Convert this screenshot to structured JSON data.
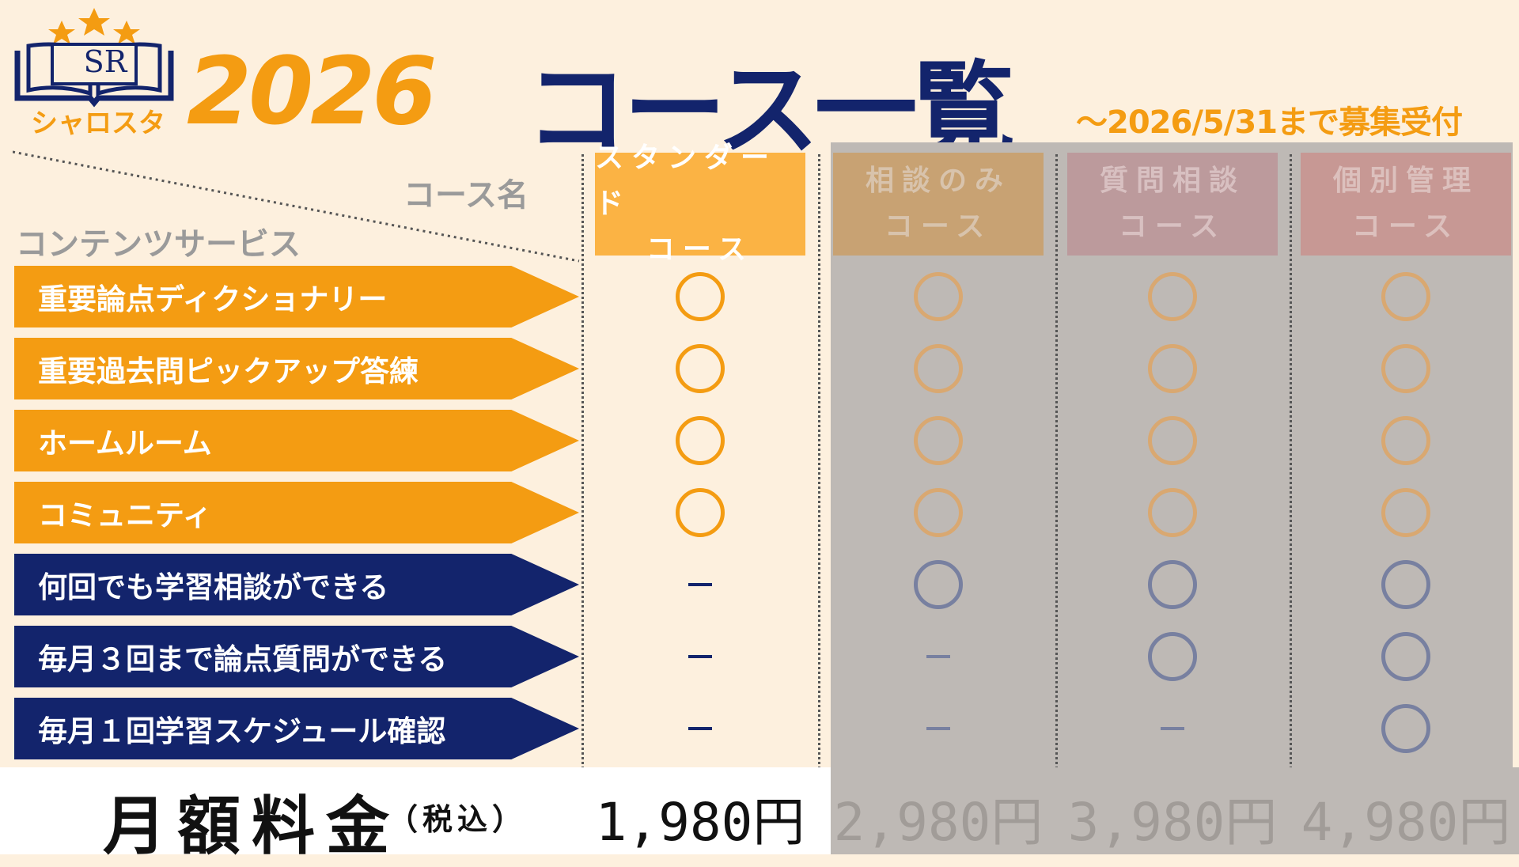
{
  "logo": {
    "text": "シャロスタ",
    "mark": "SR"
  },
  "header": {
    "year": "2026",
    "title": "コース一覧",
    "deadline": "～2026/5/31まで募集受付"
  },
  "table": {
    "course_label": "コース名",
    "content_label": "コンテンツサービス",
    "columns": [
      {
        "line1": "スタンダード",
        "line2": "コース"
      },
      {
        "line1": "相談のみ",
        "line2": "コース"
      },
      {
        "line1": "質問相談",
        "line2": "コース"
      },
      {
        "line1": "個別管理",
        "line2": "コース"
      }
    ],
    "rows": [
      {
        "label": "重要論点ディクショナリー",
        "cells": [
          "circle",
          "circle",
          "circle",
          "circle"
        ]
      },
      {
        "label": "重要過去問ピックアップ答練",
        "cells": [
          "circle",
          "circle",
          "circle",
          "circle"
        ]
      },
      {
        "label": "ホームルーム",
        "cells": [
          "circle",
          "circle",
          "circle",
          "circle"
        ]
      },
      {
        "label": "コミュニティ",
        "cells": [
          "circle",
          "circle",
          "circle",
          "circle"
        ]
      },
      {
        "label": "何回でも学習相談ができる",
        "cells": [
          "dash",
          "circle",
          "circle",
          "circle"
        ]
      },
      {
        "label": "毎月３回まで論点質問ができる",
        "cells": [
          "dash",
          "dash",
          "circle",
          "circle"
        ]
      },
      {
        "label": "毎月１回学習スケジュール確認",
        "cells": [
          "dash",
          "dash",
          "dash",
          "circle"
        ]
      }
    ],
    "fee_label": "月額料金",
    "fee_note": "（税込）",
    "prices": [
      "1,980円",
      "2,980円",
      "3,980円",
      "4,980円"
    ]
  },
  "colors": {
    "orange": "#f49c12",
    "navy": "#13246c",
    "background": "#fdf0de",
    "overlay_grey": "#beb9b5",
    "header_standard": "#fbb344",
    "header_consult": "#c8a273",
    "header_question": "#bc9a9c",
    "header_individual": "#c79894",
    "muted_orange": "#d9a871",
    "muted_navy": "#7880a0",
    "muted_text": "#a19c98"
  }
}
